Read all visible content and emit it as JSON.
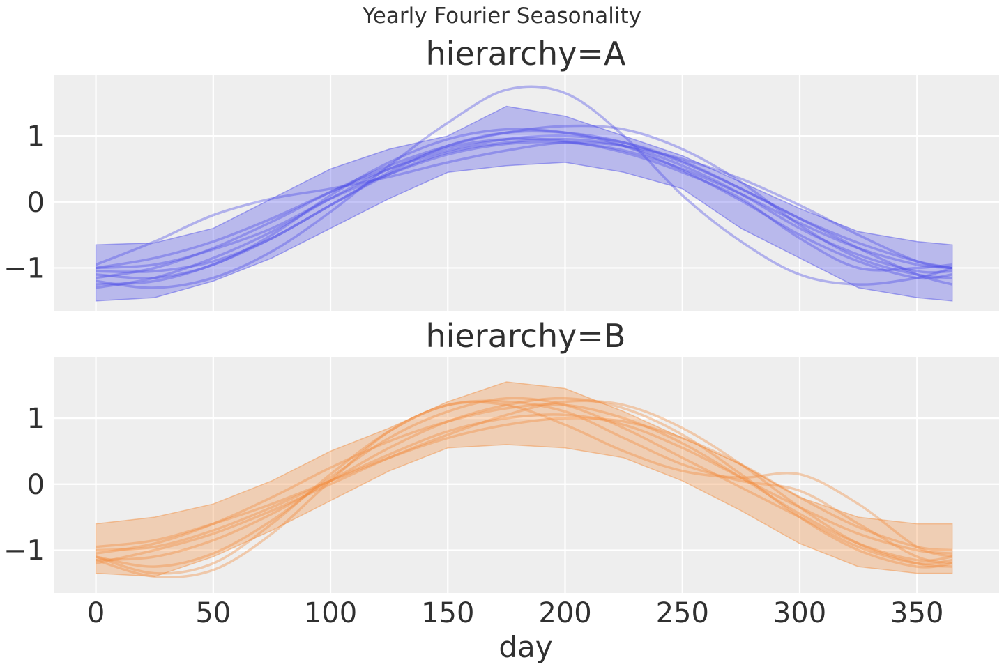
{
  "figure": {
    "suptitle": "Yearly Fourier Seasonality",
    "colors": {
      "background": "#eeeeee",
      "grid": "#ffffff",
      "text": "#303030"
    }
  },
  "chart_data": [
    {
      "type": "line",
      "title": "hierarchy=A",
      "xlabel": "",
      "ylabel": "",
      "color": "#4b4be8",
      "xlim": [
        -18,
        385
      ],
      "ylim": [
        -1.65,
        1.92
      ],
      "xticks": [
        0,
        50,
        100,
        150,
        200,
        250,
        300,
        350
      ],
      "yticks": [
        -1,
        0,
        1
      ],
      "ytick_labels": [
        "−1",
        "0",
        "1"
      ],
      "show_xtick_labels": false,
      "grid": true,
      "legend": "none",
      "band": {
        "description": "posterior interval",
        "x": [
          0,
          25,
          50,
          75,
          100,
          125,
          150,
          175,
          200,
          225,
          250,
          275,
          300,
          325,
          350,
          365
        ],
        "lower": [
          -1.5,
          -1.45,
          -1.2,
          -0.85,
          -0.4,
          0.05,
          0.45,
          0.55,
          0.6,
          0.45,
          0.2,
          -0.4,
          -0.85,
          -1.3,
          -1.45,
          -1.5
        ],
        "upper": [
          -0.65,
          -0.62,
          -0.4,
          0.05,
          0.5,
          0.8,
          1.0,
          1.45,
          1.3,
          1.0,
          0.7,
          0.3,
          -0.1,
          -0.45,
          -0.6,
          -0.65
        ]
      },
      "series": [
        {
          "x": [
            0,
            25,
            50,
            75,
            100,
            125,
            150,
            175,
            200,
            225,
            250,
            275,
            300,
            325,
            350,
            365
          ],
          "values": [
            -1.0,
            -0.95,
            -0.72,
            -0.4,
            0.05,
            0.42,
            0.72,
            0.88,
            0.9,
            0.78,
            0.5,
            0.12,
            -0.32,
            -0.7,
            -0.95,
            -1.0
          ]
        },
        {
          "x": [
            0,
            25,
            50,
            75,
            100,
            125,
            150,
            175,
            200,
            225,
            250,
            275,
            300,
            325,
            350,
            365
          ],
          "values": [
            -1.1,
            -1.15,
            -0.95,
            -0.5,
            0.1,
            0.6,
            0.95,
            1.1,
            1.05,
            0.85,
            0.48,
            0.02,
            -0.5,
            -0.9,
            -1.15,
            -1.1
          ]
        },
        {
          "x": [
            0,
            25,
            50,
            75,
            100,
            125,
            150,
            175,
            200,
            225,
            250,
            275,
            300,
            325,
            350,
            365
          ],
          "values": [
            -1.2,
            -1.3,
            -1.15,
            -0.75,
            -0.15,
            0.55,
            1.2,
            1.7,
            1.65,
            1.0,
            0.1,
            -0.6,
            -1.1,
            -1.25,
            -1.15,
            -1.0
          ]
        },
        {
          "x": [
            0,
            25,
            50,
            75,
            100,
            125,
            150,
            175,
            200,
            225,
            250,
            275,
            300,
            325,
            350,
            365
          ],
          "values": [
            -0.95,
            -0.6,
            -0.2,
            0.05,
            0.2,
            0.38,
            0.6,
            0.78,
            0.9,
            0.85,
            0.65,
            0.35,
            -0.05,
            -0.5,
            -0.9,
            -1.0
          ]
        },
        {
          "x": [
            0,
            25,
            50,
            75,
            100,
            125,
            150,
            175,
            200,
            225,
            250,
            275,
            300,
            325,
            350,
            365
          ],
          "values": [
            -1.0,
            -0.85,
            -0.6,
            -0.25,
            0.15,
            0.5,
            0.78,
            0.95,
            1.0,
            0.9,
            0.62,
            0.2,
            -0.25,
            -0.62,
            -0.9,
            -1.0
          ]
        },
        {
          "x": [
            0,
            25,
            50,
            75,
            100,
            125,
            150,
            175,
            200,
            225,
            250,
            275,
            300,
            325,
            350,
            365
          ],
          "values": [
            -1.25,
            -1.2,
            -0.95,
            -0.55,
            -0.05,
            0.45,
            0.85,
            1.05,
            1.05,
            0.9,
            0.6,
            0.2,
            -0.25,
            -0.7,
            -1.1,
            -1.25
          ]
        },
        {
          "x": [
            0,
            25,
            50,
            75,
            100,
            125,
            150,
            175,
            200,
            225,
            250,
            275,
            300,
            325,
            350,
            365
          ],
          "values": [
            -1.05,
            -1.05,
            -0.9,
            -0.55,
            -0.05,
            0.42,
            0.75,
            0.9,
            0.95,
            0.85,
            0.55,
            0.12,
            -0.4,
            -0.8,
            -1.05,
            -1.05
          ]
        },
        {
          "x": [
            0,
            25,
            50,
            75,
            100,
            125,
            150,
            175,
            200,
            225,
            250,
            275,
            300,
            325,
            350,
            365
          ],
          "values": [
            -1.15,
            -1.0,
            -0.7,
            -0.3,
            0.15,
            0.55,
            0.85,
            1.05,
            1.15,
            1.1,
            0.8,
            0.3,
            -0.35,
            -0.85,
            -1.1,
            -1.15
          ]
        },
        {
          "x": [
            0,
            25,
            50,
            75,
            100,
            125,
            150,
            175,
            200,
            225,
            250,
            275,
            300,
            325,
            350,
            365
          ],
          "values": [
            -1.3,
            -1.15,
            -0.85,
            -0.45,
            0.05,
            0.5,
            0.82,
            0.95,
            0.92,
            0.75,
            0.45,
            0.05,
            -0.55,
            -1.0,
            -1.0,
            -0.95
          ]
        }
      ]
    },
    {
      "type": "line",
      "title": "hierarchy=B",
      "xlabel": "day",
      "ylabel": "",
      "color": "#f28c3c",
      "xlim": [
        -18,
        385
      ],
      "ylim": [
        -1.65,
        1.92
      ],
      "xticks": [
        0,
        50,
        100,
        150,
        200,
        250,
        300,
        350
      ],
      "xtick_labels": [
        "0",
        "50",
        "100",
        "150",
        "200",
        "250",
        "300",
        "350"
      ],
      "yticks": [
        -1,
        0,
        1
      ],
      "ytick_labels": [
        "−1",
        "0",
        "1"
      ],
      "show_xtick_labels": true,
      "grid": true,
      "legend": "none",
      "band": {
        "description": "posterior interval",
        "x": [
          0,
          25,
          50,
          75,
          100,
          125,
          150,
          175,
          200,
          225,
          250,
          275,
          300,
          325,
          350,
          365
        ],
        "lower": [
          -1.35,
          -1.4,
          -1.1,
          -0.7,
          -0.25,
          0.2,
          0.55,
          0.6,
          0.55,
          0.4,
          0.05,
          -0.4,
          -0.9,
          -1.25,
          -1.35,
          -1.35
        ],
        "upper": [
          -0.6,
          -0.5,
          -0.3,
          0.05,
          0.5,
          0.85,
          1.25,
          1.55,
          1.45,
          1.1,
          0.7,
          0.3,
          -0.2,
          -0.5,
          -0.6,
          -0.6
        ]
      },
      "series": [
        {
          "x": [
            0,
            25,
            50,
            75,
            100,
            125,
            150,
            175,
            200,
            225,
            250,
            275,
            300,
            325,
            350,
            365
          ],
          "values": [
            -1.0,
            -0.95,
            -0.7,
            -0.35,
            0.05,
            0.45,
            0.8,
            1.0,
            1.05,
            0.9,
            0.55,
            0.1,
            -0.35,
            -0.75,
            -1.0,
            -1.05
          ]
        },
        {
          "x": [
            0,
            25,
            50,
            75,
            100,
            125,
            150,
            175,
            200,
            225,
            250,
            275,
            300,
            325,
            350,
            365
          ],
          "values": [
            -1.1,
            -1.35,
            -1.2,
            -0.6,
            0.15,
            0.8,
            1.2,
            1.2,
            0.9,
            0.5,
            0.2,
            0.1,
            0.15,
            -0.3,
            -0.95,
            -1.1
          ]
        },
        {
          "x": [
            0,
            25,
            50,
            75,
            100,
            125,
            150,
            175,
            200,
            225,
            250,
            275,
            300,
            325,
            350,
            365
          ],
          "values": [
            -1.15,
            -1.4,
            -1.3,
            -0.75,
            0.05,
            0.8,
            1.2,
            1.25,
            1.1,
            0.7,
            0.3,
            0.05,
            -0.1,
            -0.6,
            -1.1,
            -1.2
          ]
        },
        {
          "x": [
            0,
            25,
            50,
            75,
            100,
            125,
            150,
            175,
            200,
            225,
            250,
            275,
            300,
            325,
            350,
            365
          ],
          "values": [
            -1.2,
            -1.0,
            -0.75,
            -0.4,
            0.0,
            0.4,
            0.75,
            1.05,
            1.25,
            1.2,
            0.85,
            0.3,
            -0.35,
            -0.9,
            -1.2,
            -1.25
          ]
        },
        {
          "x": [
            0,
            25,
            50,
            75,
            100,
            125,
            150,
            175,
            200,
            225,
            250,
            275,
            300,
            325,
            350,
            365
          ],
          "values": [
            -1.05,
            -0.9,
            -0.6,
            -0.2,
            0.25,
            0.65,
            0.95,
            1.15,
            1.2,
            1.0,
            0.62,
            0.1,
            -0.45,
            -0.9,
            -1.15,
            -1.1
          ]
        },
        {
          "x": [
            0,
            25,
            50,
            75,
            100,
            125,
            150,
            175,
            200,
            225,
            250,
            275,
            300,
            325,
            350,
            365
          ],
          "values": [
            -1.15,
            -1.1,
            -0.85,
            -0.45,
            0.05,
            0.55,
            0.95,
            1.2,
            1.3,
            1.15,
            0.75,
            0.15,
            -0.5,
            -1.0,
            -1.25,
            -1.2
          ]
        },
        {
          "x": [
            0,
            25,
            50,
            75,
            100,
            125,
            150,
            175,
            200,
            225,
            250,
            275,
            300,
            325,
            350,
            365
          ],
          "values": [
            -0.95,
            -0.85,
            -0.6,
            -0.3,
            0.05,
            0.4,
            0.7,
            0.9,
            1.0,
            0.95,
            0.7,
            0.3,
            -0.2,
            -0.65,
            -0.95,
            -1.0
          ]
        },
        {
          "x": [
            0,
            25,
            50,
            75,
            100,
            125,
            150,
            175,
            200,
            225,
            250,
            275,
            300,
            325,
            350,
            365
          ],
          "values": [
            -1.1,
            -1.25,
            -1.05,
            -0.55,
            0.1,
            0.7,
            1.1,
            1.3,
            1.2,
            0.85,
            0.4,
            -0.05,
            -0.5,
            -0.95,
            -1.2,
            -1.15
          ]
        }
      ]
    }
  ]
}
